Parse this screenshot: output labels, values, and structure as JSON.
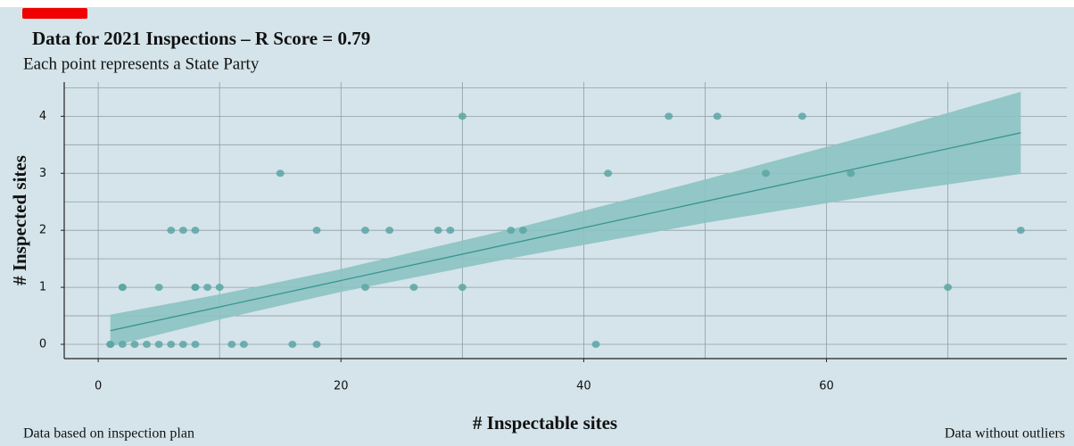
{
  "chart_data": {
    "type": "scatter",
    "title": "Data for 2021 Inspections – R Score = 0.79",
    "subtitle": "Each point represents a State Party",
    "x_label": "# Inspectable sites",
    "y_label": "# Inspected sites",
    "footnote_left": "Data based on inspection plan",
    "footnote_right": "Data without outliers",
    "x": [
      1,
      1,
      2,
      3,
      4,
      5,
      6,
      7,
      8,
      11,
      12,
      16,
      18,
      41,
      2,
      2,
      5,
      8,
      8,
      9,
      10,
      22,
      26,
      30,
      70,
      6,
      7,
      8,
      18,
      22,
      24,
      28,
      29,
      34,
      35,
      76,
      15,
      42,
      55,
      62,
      30,
      47,
      51,
      58
    ],
    "values": [
      0,
      0,
      0,
      0,
      0,
      0,
      0,
      0,
      0,
      0,
      0,
      0,
      0,
      0,
      1,
      1,
      1,
      1,
      1,
      1,
      1,
      1,
      1,
      1,
      1,
      2,
      2,
      2,
      2,
      2,
      2,
      2,
      2,
      2,
      2,
      2,
      3,
      3,
      3,
      3,
      4,
      4,
      4,
      4
    ],
    "color": "#5aa6a3",
    "fit": {
      "x": [
        1,
        76
      ],
      "values": [
        0.24,
        3.71
      ],
      "color": "#36968e"
    },
    "band": {
      "x": [
        1,
        10,
        20,
        35,
        50,
        65,
        76
      ],
      "upper": [
        0.52,
        0.877,
        1.32,
        2.07,
        2.89,
        3.75,
        4.43
      ],
      "lower": [
        -0.04,
        0.437,
        0.92,
        1.55,
        2.13,
        2.65,
        2.99
      ],
      "color": "#8cc2c2"
    },
    "xlim": [
      -2.8,
      79.8
    ],
    "ylim": [
      -0.25,
      4.6
    ],
    "xticks": [
      0,
      20,
      40,
      60
    ],
    "yticks": [
      0,
      1,
      2,
      3,
      4
    ],
    "xgrid": [
      0,
      10,
      20,
      30,
      40,
      50,
      60,
      70
    ],
    "ygrid": [
      0,
      0.5,
      1,
      1.5,
      2,
      2.5,
      3,
      3.5,
      4,
      4.5
    ],
    "grid": true
  }
}
